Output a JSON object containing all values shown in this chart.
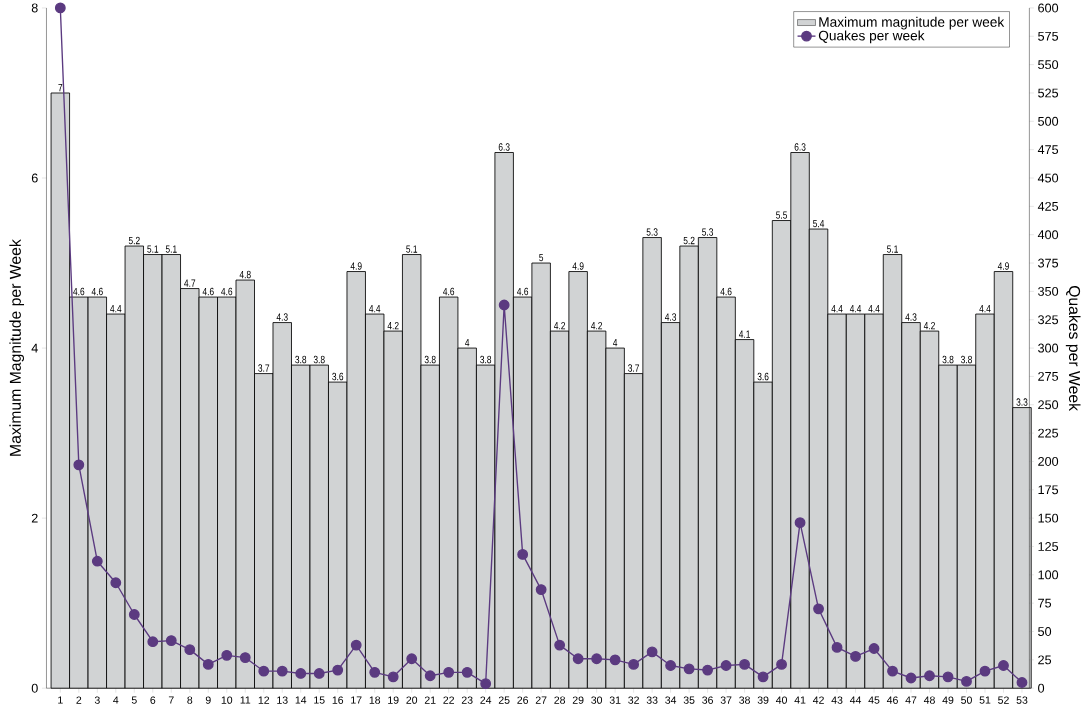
{
  "chart_data": {
    "type": "bar",
    "ylabel": "Maximum Magnitude per Week",
    "y2label": "Quakes per Week",
    "categories": [
      "1",
      "2",
      "3",
      "4",
      "5",
      "6",
      "7",
      "8",
      "9",
      "10",
      "11",
      "12",
      "13",
      "14",
      "15",
      "16",
      "17",
      "18",
      "19",
      "20",
      "21",
      "22",
      "23",
      "24",
      "25",
      "26",
      "27",
      "28",
      "29",
      "30",
      "31",
      "32",
      "33",
      "34",
      "35",
      "36",
      "37",
      "38",
      "39",
      "40",
      "41",
      "42",
      "43",
      "44",
      "45",
      "46",
      "47",
      "48",
      "49",
      "50",
      "51",
      "52",
      "53"
    ],
    "series": [
      {
        "name": "Maximum magnitude per week",
        "color": "#d1d3d4",
        "values": [
          7,
          4.6,
          4.6,
          4.4,
          5.2,
          5.1,
          5.1,
          4.7,
          4.6,
          4.6,
          4.8,
          3.7,
          4.3,
          3.8,
          3.8,
          3.6,
          4.9,
          4.4,
          4.2,
          5.1,
          3.8,
          4.6,
          4,
          3.8,
          6.3,
          4.6,
          5,
          4.2,
          4.9,
          4.2,
          4,
          3.7,
          5.3,
          4.3,
          5.2,
          5.3,
          4.6,
          4.1,
          3.6,
          5.5,
          6.3,
          5.4,
          4.4,
          4.4,
          4.4,
          5.1,
          4.3,
          4.2,
          3.8,
          3.8,
          4.4,
          4.9,
          3.3
        ],
        "value_labels": [
          "7",
          "4.6",
          "4.6",
          "4.4",
          "5.2",
          "5.1",
          "5.1",
          "4.7",
          "4.6",
          "4.6",
          "4.8",
          "3.7",
          "4.3",
          "3.8",
          "3.8",
          "3.6",
          "4.9",
          "4.4",
          "4.2",
          "5.1",
          "3.8",
          "4.6",
          "4",
          "3.8",
          "6.3",
          "4.6",
          "5",
          "4.2",
          "4.9",
          "4.2",
          "4",
          "3.7",
          "5.3",
          "4.3",
          "5.2",
          "5.3",
          "4.6",
          "4.1",
          "3.6",
          "5.5",
          "6.3",
          "5.4",
          "4.4",
          "4.4",
          "4.4",
          "5.1",
          "4.3",
          "4.2",
          "3.8",
          "3.8",
          "4.4",
          "4.9",
          "3.3"
        ]
      },
      {
        "name": "Quakes per week",
        "type": "line",
        "axis": "y2",
        "color": "#5b3a80",
        "marker": "circle",
        "values": [
          600,
          197,
          112,
          93,
          65,
          41,
          42,
          34,
          21,
          29,
          27,
          15,
          15,
          13,
          13,
          16,
          38,
          14,
          10,
          26,
          11,
          14,
          14,
          4,
          338,
          118,
          87,
          38,
          26,
          26,
          25,
          21,
          32,
          20,
          17,
          16,
          20,
          21,
          10,
          21,
          146,
          70,
          36,
          28,
          35,
          15,
          9,
          11,
          10,
          6,
          15,
          20,
          5
        ]
      }
    ],
    "ylim": [
      0,
      8
    ],
    "yticks": [
      0,
      2,
      4,
      6,
      8
    ],
    "y2lim": [
      0,
      600
    ],
    "y2ticks": [
      0,
      25,
      50,
      75,
      100,
      125,
      150,
      175,
      200,
      225,
      250,
      275,
      300,
      325,
      350,
      375,
      400,
      425,
      450,
      475,
      500,
      525,
      550,
      575,
      600
    ],
    "legend": "top right",
    "grid": false
  }
}
